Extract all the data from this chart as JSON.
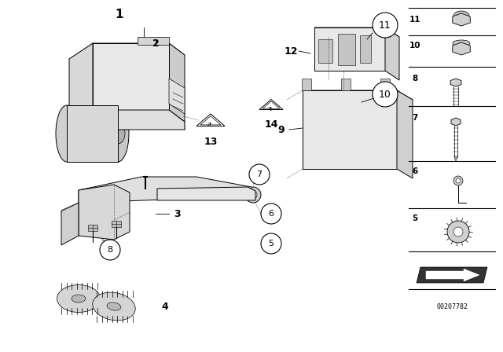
{
  "bg_color": "#ffffff",
  "line_color": "#000000",
  "part_number": "00207782",
  "fig_width": 6.4,
  "fig_height": 4.48,
  "dpi": 100
}
